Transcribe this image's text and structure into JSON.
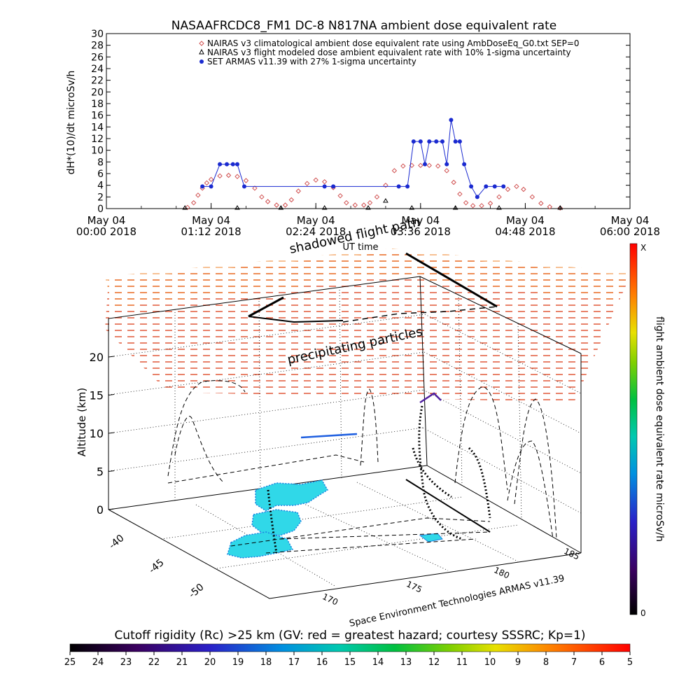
{
  "chart_data": [
    {
      "type": "scatter",
      "title": "NASAAFRCDC8_FM1 DC-8    N817NA ambient dose equivalent rate",
      "ylabel": "dH*(10)/dt microSv/h",
      "xlabel": "UT time",
      "ylim": [
        0,
        30
      ],
      "yticks": [
        0,
        2,
        4,
        6,
        8,
        10,
        12,
        14,
        16,
        18,
        20,
        22,
        24,
        26,
        28,
        30
      ],
      "xlim_hours": [
        0,
        6
      ],
      "xtick_labels": [
        {
          "hour": 0,
          "line1": "May 04",
          "line2": "00:00 2018"
        },
        {
          "hour": 1.2,
          "line1": "May 04",
          "line2": "01:12 2018"
        },
        {
          "hour": 2.4,
          "line1": "May 04",
          "line2": "02:24 2018"
        },
        {
          "hour": 3.6,
          "line1": "May 04",
          "line2": "03:36 2018"
        },
        {
          "hour": 4.8,
          "line1": "May 04",
          "line2": "04:48 2018"
        },
        {
          "hour": 6,
          "line1": "May 04",
          "line2": "06:00 2018"
        }
      ],
      "legend": [
        {
          "label": "NAIRAS v3 climatological ambient dose equivalent rate using AmbDoseEq_G0.txt SEP=0",
          "color": "#d05050",
          "marker": "diamond"
        },
        {
          "label": "NAIRAS v3 flight modeled dose ambient equivalent rate with 10% 1-sigma uncertainty",
          "color": "#000000",
          "marker": "triangle"
        },
        {
          "label": "SET ARMAS v11.39 with 27% 1-sigma uncertainty",
          "color": "#1a2ad0",
          "marker": "dot"
        }
      ],
      "series": [
        {
          "name": "NAIRAS v3 climatological ambient dose equivalent rate using AmbDoseEq_G0.txt SEP=0",
          "color": "#d05050",
          "points": [
            [
              0.93,
              0.2
            ],
            [
              1.0,
              1.0
            ],
            [
              1.05,
              2.3
            ],
            [
              1.1,
              3.5
            ],
            [
              1.15,
              4.4
            ],
            [
              1.2,
              5.0
            ],
            [
              1.3,
              5.6
            ],
            [
              1.4,
              5.7
            ],
            [
              1.5,
              5.5
            ],
            [
              1.6,
              4.8
            ],
            [
              1.7,
              3.5
            ],
            [
              1.78,
              2.0
            ],
            [
              1.85,
              1.2
            ],
            [
              1.95,
              0.6
            ],
            [
              2.05,
              0.6
            ],
            [
              2.12,
              1.5
            ],
            [
              2.2,
              3.0
            ],
            [
              2.3,
              4.3
            ],
            [
              2.4,
              4.9
            ],
            [
              2.5,
              4.6
            ],
            [
              2.6,
              3.6
            ],
            [
              2.68,
              2.2
            ],
            [
              2.75,
              1.0
            ],
            [
              2.85,
              0.6
            ],
            [
              2.95,
              0.6
            ],
            [
              3.02,
              1.0
            ],
            [
              3.1,
              2.0
            ],
            [
              3.2,
              4.0
            ],
            [
              3.3,
              6.5
            ],
            [
              3.4,
              7.3
            ],
            [
              3.5,
              7.4
            ],
            [
              3.6,
              7.4
            ],
            [
              3.7,
              7.4
            ],
            [
              3.8,
              7.3
            ],
            [
              3.9,
              6.5
            ],
            [
              3.98,
              4.5
            ],
            [
              4.05,
              2.5
            ],
            [
              4.12,
              1.0
            ],
            [
              4.2,
              0.5
            ],
            [
              4.3,
              0.5
            ],
            [
              4.4,
              0.9
            ],
            [
              4.5,
              2.0
            ],
            [
              4.6,
              3.3
            ],
            [
              4.7,
              3.8
            ],
            [
              4.78,
              3.3
            ],
            [
              4.88,
              2.0
            ],
            [
              4.98,
              0.9
            ],
            [
              5.08,
              0.3
            ],
            [
              5.2,
              0.1
            ]
          ]
        },
        {
          "name": "NAIRAS v3 flight modeled dose ambient equivalent rate with 10% 1-sigma uncertainty",
          "color": "#000000",
          "points": [
            [
              0.9,
              0.0
            ],
            [
              1.5,
              0.0
            ],
            [
              2.0,
              0.0
            ],
            [
              2.5,
              0.0
            ],
            [
              3.0,
              0.0
            ],
            [
              3.2,
              1.2
            ],
            [
              3.5,
              0.0
            ],
            [
              4.0,
              0.0
            ],
            [
              4.5,
              0.0
            ],
            [
              5.2,
              0.0
            ]
          ]
        },
        {
          "name": "SET ARMAS v11.39 with 27% 1-sigma uncertainty",
          "color": "#1a2ad0",
          "points": [
            [
              1.1,
              3.8
            ],
            [
              1.2,
              3.8
            ],
            [
              1.3,
              7.6
            ],
            [
              1.38,
              7.6
            ],
            [
              1.45,
              7.6
            ],
            [
              1.5,
              7.6
            ],
            [
              1.58,
              3.8
            ],
            [
              2.5,
              3.8
            ],
            [
              2.6,
              3.8
            ],
            [
              3.35,
              3.8
            ],
            [
              3.45,
              3.8
            ],
            [
              3.52,
              11.5
            ],
            [
              3.6,
              11.5
            ],
            [
              3.65,
              7.6
            ],
            [
              3.7,
              11.5
            ],
            [
              3.78,
              11.5
            ],
            [
              3.85,
              11.5
            ],
            [
              3.9,
              7.6
            ],
            [
              3.95,
              15.2
            ],
            [
              4.0,
              11.5
            ],
            [
              4.05,
              11.5
            ],
            [
              4.1,
              7.6
            ],
            [
              4.18,
              3.8
            ],
            [
              4.25,
              2.0
            ],
            [
              4.35,
              3.8
            ],
            [
              4.45,
              3.8
            ],
            [
              4.55,
              3.8
            ]
          ]
        }
      ]
    },
    {
      "type": "3d-map",
      "ylabel": "Altitude (km)",
      "zticks": [
        "0",
        "5",
        "10",
        "15",
        "20"
      ],
      "lat_ticks": [
        "-40",
        "-45",
        "-50"
      ],
      "lon_ticks": [
        "170",
        "175",
        "180",
        "185"
      ],
      "annotations": [
        "shadowed flight path",
        "precipitating particles",
        "UT time"
      ],
      "credit": "Space Environment Technologies ARMAS v11.39",
      "colorbar_label": "flight ambient dose equivalent rate microSv/h",
      "colorbar_top": "X",
      "colorbar_bottom": "0"
    }
  ],
  "bottom_bar": {
    "title": "Cutoff rigidity (Rc) >25 km (GV: red = greatest hazard; courtesy SSSRC; Kp=1)",
    "ticks": [
      "25",
      "24",
      "23",
      "22",
      "21",
      "20",
      "19",
      "18",
      "17",
      "16",
      "15",
      "14",
      "13",
      "12",
      "11",
      "10",
      "9",
      "8",
      "7",
      "6",
      "5"
    ]
  }
}
